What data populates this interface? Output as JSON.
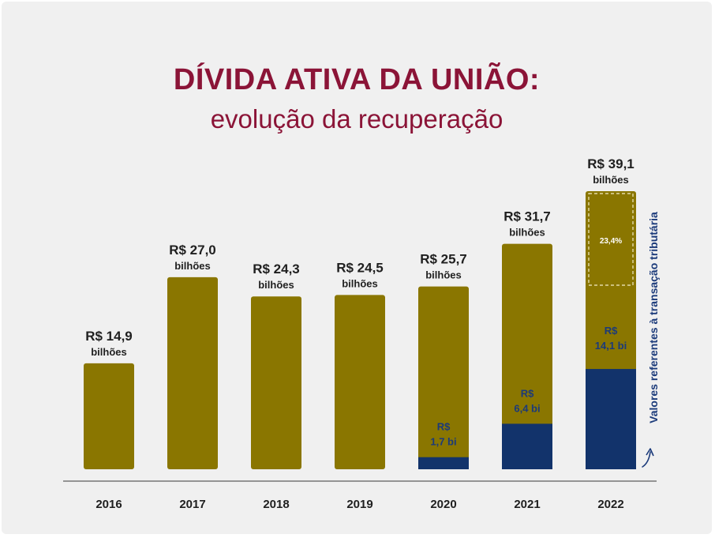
{
  "header": {
    "title": "DÍVIDA ATIVA DA UNIÃO:",
    "subtitle": "evolução da recuperação"
  },
  "side_note": "Valores referentes à transação tributária",
  "colors": {
    "bar": "#8a7600",
    "transaction": "#12336b",
    "title": "#8b1437",
    "label": "#1f1f1f",
    "inner_label": "#1b3a7a",
    "axis": "#777777"
  },
  "chart_data": {
    "type": "bar",
    "categories": [
      "2016",
      "2017",
      "2018",
      "2019",
      "2020",
      "2021",
      "2022"
    ],
    "series": [
      {
        "values": [
          14.9,
          27.0,
          24.3,
          24.5,
          25.7,
          31.7,
          39.1
        ]
      },
      {
        "values": [
          0,
          0,
          0,
          0,
          1.7,
          6.4,
          14.1
        ]
      }
    ],
    "value_labels": [
      "R$ 14,9",
      "R$ 27,0",
      "R$ 24,3",
      "R$ 24,5",
      "R$ 25,7",
      "R$ 31,7",
      "R$ 39,1"
    ],
    "unit_label": "bilhões",
    "segment_labels": [
      {
        "category": "2020",
        "lines": [
          "R$",
          "1,7 bi"
        ]
      },
      {
        "category": "2021",
        "lines": [
          "R$",
          "6,4 bi"
        ]
      },
      {
        "category": "2022",
        "lines": [
          "R$",
          "14,1 bi"
        ]
      }
    ],
    "annotation": {
      "category": "2022",
      "text": "23,4%"
    },
    "ylim": [
      0,
      39.1
    ],
    "grid": false,
    "legend": "none"
  }
}
